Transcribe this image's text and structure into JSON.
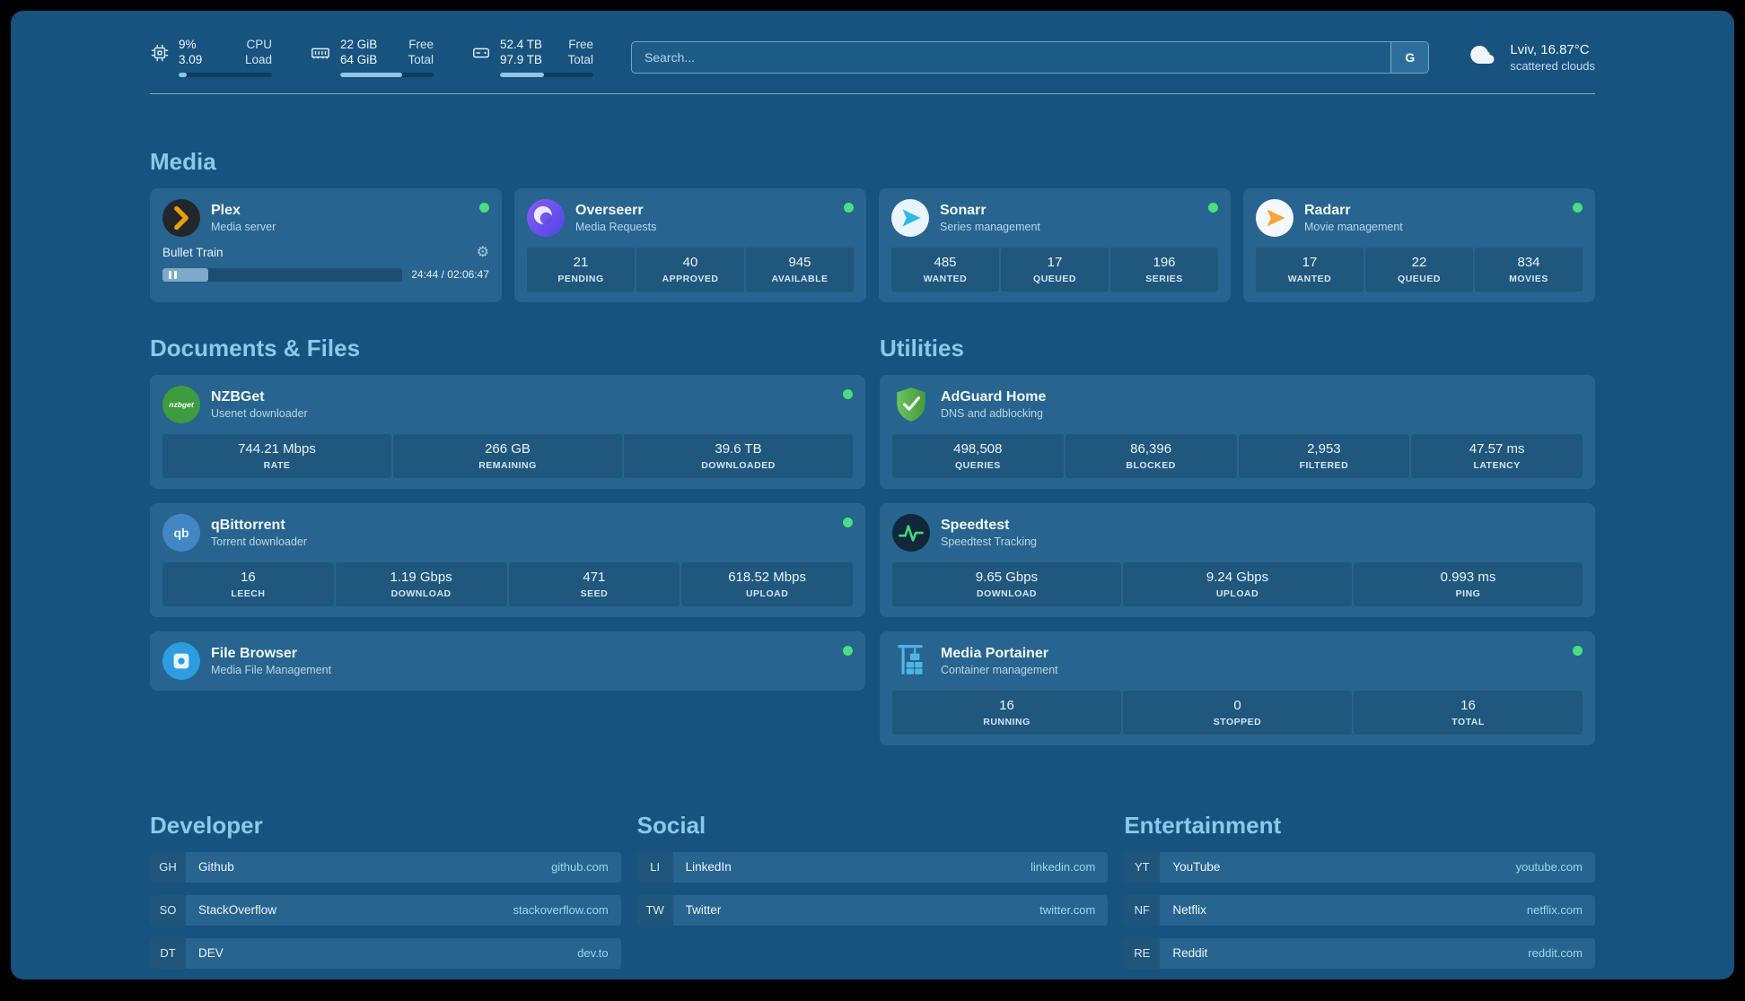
{
  "header": {
    "stats": [
      {
        "icon": "cpu-icon",
        "values": [
          "9%",
          "3.09"
        ],
        "labels": [
          "CPU",
          "Load"
        ],
        "percent": 9
      },
      {
        "icon": "memory-icon",
        "values": [
          "22 GiB",
          "64 GiB"
        ],
        "labels": [
          "Free",
          "Total"
        ],
        "percent": 66
      },
      {
        "icon": "disk-icon",
        "values": [
          "52.4 TB",
          "97.9 TB"
        ],
        "labels": [
          "Free",
          "Total"
        ],
        "percent": 47
      }
    ],
    "search": {
      "placeholder": "Search...",
      "button_label": "G"
    },
    "weather": {
      "location": "Lviv, 16.87°C",
      "condition": "scattered clouds"
    }
  },
  "sections": {
    "media": {
      "title": "Media",
      "plex": {
        "name": "Plex",
        "subtitle": "Media server",
        "status": "online",
        "now_playing": "Bullet Train",
        "time": "24:44 / 02:06:47",
        "progress_percent": 19
      },
      "overseerr": {
        "name": "Overseerr",
        "subtitle": "Media Requests",
        "status": "online",
        "stats": [
          {
            "value": "21",
            "label": "PENDING"
          },
          {
            "value": "40",
            "label": "APPROVED"
          },
          {
            "value": "945",
            "label": "AVAILABLE"
          }
        ]
      },
      "sonarr": {
        "name": "Sonarr",
        "subtitle": "Series management",
        "status": "online",
        "stats": [
          {
            "value": "485",
            "label": "WANTED"
          },
          {
            "value": "17",
            "label": "QUEUED"
          },
          {
            "value": "196",
            "label": "SERIES"
          }
        ]
      },
      "radarr": {
        "name": "Radarr",
        "subtitle": "Movie management",
        "status": "online",
        "stats": [
          {
            "value": "17",
            "label": "WANTED"
          },
          {
            "value": "22",
            "label": "QUEUED"
          },
          {
            "value": "834",
            "label": "MOVIES"
          }
        ]
      }
    },
    "documents": {
      "title": "Documents & Files",
      "nzbget": {
        "name": "NZBGet",
        "subtitle": "Usenet downloader",
        "status": "online",
        "icon_text": "nzbget",
        "stats": [
          {
            "value": "744.21 Mbps",
            "label": "RATE"
          },
          {
            "value": "266 GB",
            "label": "REMAINING"
          },
          {
            "value": "39.6 TB",
            "label": "DOWNLOADED"
          }
        ]
      },
      "qbittorrent": {
        "name": "qBittorrent",
        "subtitle": "Torrent downloader",
        "status": "online",
        "icon_text": "qb",
        "stats": [
          {
            "value": "16",
            "label": "LEECH"
          },
          {
            "value": "1.19 Gbps",
            "label": "DOWNLOAD"
          },
          {
            "value": "471",
            "label": "SEED"
          },
          {
            "value": "618.52 Mbps",
            "label": "UPLOAD"
          }
        ]
      },
      "filebrowser": {
        "name": "File Browser",
        "subtitle": "Media File Management",
        "status": "online"
      }
    },
    "utilities": {
      "title": "Utilities",
      "adguard": {
        "name": "AdGuard Home",
        "subtitle": "DNS and adblocking",
        "stats": [
          {
            "value": "498,508",
            "label": "QUERIES"
          },
          {
            "value": "86,396",
            "label": "BLOCKED"
          },
          {
            "value": "2,953",
            "label": "FILTERED"
          },
          {
            "value": "47.57 ms",
            "label": "LATENCY"
          }
        ]
      },
      "speedtest": {
        "name": "Speedtest",
        "subtitle": "Speedtest Tracking",
        "stats": [
          {
            "value": "9.65 Gbps",
            "label": "DOWNLOAD"
          },
          {
            "value": "9.24 Gbps",
            "label": "UPLOAD"
          },
          {
            "value": "0.993 ms",
            "label": "PING"
          }
        ]
      },
      "portainer": {
        "name": "Media Portainer",
        "subtitle": "Container management",
        "status": "online",
        "stats": [
          {
            "value": "16",
            "label": "RUNNING"
          },
          {
            "value": "0",
            "label": "STOPPED"
          },
          {
            "value": "16",
            "label": "TOTAL"
          }
        ]
      }
    },
    "bookmarks": [
      {
        "title": "Developer",
        "items": [
          {
            "abbr": "GH",
            "name": "Github",
            "url": "github.com"
          },
          {
            "abbr": "SO",
            "name": "StackOverflow",
            "url": "stackoverflow.com"
          },
          {
            "abbr": "DT",
            "name": "DEV",
            "url": "dev.to"
          }
        ]
      },
      {
        "title": "Social",
        "items": [
          {
            "abbr": "LI",
            "name": "LinkedIn",
            "url": "linkedin.com"
          },
          {
            "abbr": "TW",
            "name": "Twitter",
            "url": "twitter.com"
          }
        ]
      },
      {
        "title": "Entertainment",
        "items": [
          {
            "abbr": "YT",
            "name": "YouTube",
            "url": "youtube.com"
          },
          {
            "abbr": "NF",
            "name": "Netflix",
            "url": "netflix.com"
          },
          {
            "abbr": "RE",
            "name": "Reddit",
            "url": "reddit.com"
          }
        ]
      }
    ]
  },
  "colors": {
    "background": "#17537e",
    "card": "#27648f",
    "heading": "#8cc8ec",
    "status_online": "#4ade80",
    "url_text": "#9fd4f4",
    "plex_orange": "#e5a00d"
  }
}
